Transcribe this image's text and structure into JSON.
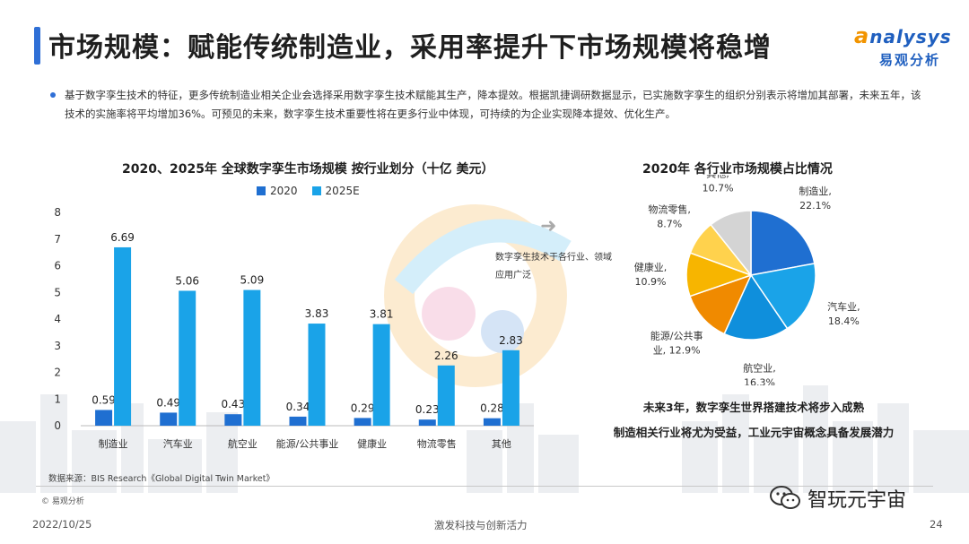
{
  "header": {
    "title": "市场规模：赋能传统制造业，采用率提升下市场规模将稳增",
    "logo_en_a": "a",
    "logo_en_rest": "nalysys",
    "logo_cn": "易观分析"
  },
  "intro": "基于数字孪生技术的特征，更多传统制造业相关企业会选择采用数字孪生技术赋能其生产，降本提效。根据凯捷调研数据显示，已实施数字孪生的组织分别表示将增加其部署，未来五年，该技术的实施率将平均增加36%。可预见的未来，数字孪生技术重要性将在更多行业中体现，可持续的为企业实现降本提效、优化生产。",
  "left_chart": {
    "title": "2020、2025年 全球数字孪生市场规模 按行业划分（十亿 美元）",
    "legend": [
      "2020",
      "2025E"
    ],
    "annotation": "数字孪生技术于各行业、领域应用广泛"
  },
  "right_chart": {
    "title": "2020年 各行业市场规模占比情况"
  },
  "conclusion": {
    "line1": "未来3年，数字孪生世界搭建技术将步入成熟",
    "line2": "制造相关行业将尤为受益，工业元宇宙概念具备发展潜力"
  },
  "footer": {
    "source": "数据来源：BIS Research《Global Digital Twin Market》",
    "copyright": "© 易观分析",
    "date": "2022/10/25",
    "tagline": "激发科技与创新活力",
    "page": "24",
    "wechat_name": "智玩元宇宙"
  },
  "colors": {
    "accent": "#2f6fd6",
    "series_2020": "#1f6fd1",
    "series_2025": "#1aa3e8"
  },
  "icons": {
    "wechat": "wechat-icon",
    "arrow": "arrow-icon"
  },
  "chart_data": [
    {
      "type": "bar",
      "title": "2020、2025年 全球数字孪生市场规模 按行业划分（十亿 美元）",
      "categories": [
        "制造业",
        "汽车业",
        "航空业",
        "能源/公共事业",
        "健康业",
        "物流零售",
        "其他"
      ],
      "series": [
        {
          "name": "2020",
          "values": [
            0.59,
            0.49,
            0.43,
            0.34,
            0.29,
            0.23,
            0.28
          ]
        },
        {
          "name": "2025E",
          "values": [
            6.69,
            5.06,
            5.09,
            3.83,
            3.81,
            2.26,
            2.83
          ]
        }
      ],
      "yticks": [
        "0",
        "1",
        "2",
        "3",
        "4",
        "5",
        "6",
        "7",
        "8"
      ],
      "ylim": [
        0,
        8
      ],
      "legend": "top-center",
      "grid": false
    },
    {
      "type": "pie",
      "title": "2020年 各行业市场规模占比情况",
      "slices": [
        {
          "label": "制造业,",
          "pct_label": "22.1%",
          "value": 22.1,
          "color": "#1f6fd1"
        },
        {
          "label": "汽车业,",
          "pct_label": "18.4%",
          "value": 18.4,
          "color": "#1aa3e8"
        },
        {
          "label": "航空业,",
          "pct_label": "16.3%",
          "value": 16.3,
          "color": "#0f8fdc"
        },
        {
          "label": "能源/公共事",
          "pct_label": "业, 12.9%",
          "value": 12.9,
          "color": "#f08a00"
        },
        {
          "label": "健康业,",
          "pct_label": "10.9%",
          "value": 10.9,
          "color": "#f7b500"
        },
        {
          "label": "物流零售,",
          "pct_label": "8.7%",
          "value": 8.7,
          "color": "#ffd24d"
        },
        {
          "label": "其他,",
          "pct_label": "10.7%",
          "value": 10.7,
          "color": "#d4d4d4"
        }
      ]
    }
  ]
}
